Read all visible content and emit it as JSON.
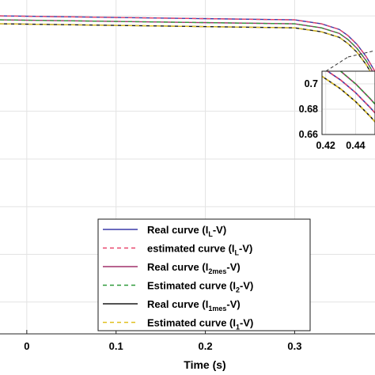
{
  "chart_data": {
    "type": "line",
    "xlabel": "Time (s)",
    "ylabel": "",
    "x_ticks": [
      "0",
      "0.1",
      "0.2",
      "0.3"
    ],
    "xlim": [
      -0.03,
      0.39
    ],
    "grid": true,
    "legend_position": "bottom-right",
    "series": [
      {
        "name": "Real curve (I",
        "sub": "L",
        "tail": "-V)",
        "color": "#3a3aa8",
        "dash": "solid",
        "x": [
          -0.03,
          0.3,
          0.33,
          0.35,
          0.36,
          0.37,
          0.38,
          0.39
        ],
        "y": [
          0.8,
          0.795,
          0.79,
          0.783,
          0.775,
          0.764,
          0.749,
          0.73
        ]
      },
      {
        "name": "estimated curve (I",
        "sub": "L",
        "tail": "-V)",
        "color": "#e8456a",
        "dash": "dashed",
        "x": [
          -0.03,
          0.3,
          0.33,
          0.35,
          0.36,
          0.37,
          0.38,
          0.39
        ],
        "y": [
          0.8,
          0.795,
          0.79,
          0.783,
          0.775,
          0.764,
          0.749,
          0.73
        ]
      },
      {
        "name": "Real curve (I",
        "sub": "2mes",
        "tail": "-V)",
        "color": "#a0306a",
        "dash": "solid",
        "x": [
          -0.03,
          0.3,
          0.33,
          0.35,
          0.36,
          0.37,
          0.38,
          0.39
        ],
        "y": [
          0.795,
          0.79,
          0.785,
          0.778,
          0.77,
          0.759,
          0.744,
          0.725
        ]
      },
      {
        "name": "Estimated curve (I",
        "sub": "2",
        "tail": "-V)",
        "color": "#2f9a3a",
        "dash": "dashed",
        "x": [
          -0.03,
          0.3,
          0.33,
          0.35,
          0.36,
          0.37,
          0.38,
          0.39
        ],
        "y": [
          0.795,
          0.79,
          0.785,
          0.778,
          0.77,
          0.759,
          0.744,
          0.725
        ]
      },
      {
        "name": "Real curve (I",
        "sub": "1mes",
        "tail": "-V)",
        "color": "#1a1a1a",
        "dash": "solid",
        "x": [
          -0.03,
          0.3,
          0.33,
          0.35,
          0.36,
          0.37,
          0.38,
          0.39
        ],
        "y": [
          0.79,
          0.785,
          0.78,
          0.773,
          0.765,
          0.754,
          0.739,
          0.72
        ]
      },
      {
        "name": "Estimated curve (I",
        "sub": "1",
        "tail": "-V)",
        "color": "#e0c020",
        "dash": "dashed",
        "x": [
          -0.03,
          0.3,
          0.33,
          0.35,
          0.36,
          0.37,
          0.38,
          0.39
        ],
        "y": [
          0.79,
          0.785,
          0.78,
          0.773,
          0.765,
          0.754,
          0.739,
          0.72
        ]
      }
    ],
    "inset": {
      "x_ticks": [
        "0.42",
        "0.44"
      ],
      "y_ticks": [
        "0.7",
        "0.68",
        "0.66"
      ],
      "xlim": [
        0.4175,
        0.453
      ],
      "ylim": [
        0.66,
        0.71
      ],
      "series_y": [
        {
          "x": [
            0.4175,
            0.42,
            0.43,
            0.44,
            0.45,
            0.453
          ],
          "y": [
            0.713,
            0.711,
            0.703,
            0.693,
            0.681,
            0.677
          ]
        },
        {
          "x": [
            0.4175,
            0.42,
            0.43,
            0.44,
            0.45,
            0.453
          ],
          "y": [
            0.713,
            0.711,
            0.703,
            0.693,
            0.681,
            0.677
          ]
        },
        {
          "x": [
            0.4175,
            0.42,
            0.43,
            0.44,
            0.45,
            0.453
          ],
          "y": [
            0.72,
            0.718,
            0.71,
            0.7,
            0.688,
            0.684
          ]
        },
        {
          "x": [
            0.4175,
            0.42,
            0.43,
            0.44,
            0.45,
            0.453
          ],
          "y": [
            0.72,
            0.718,
            0.71,
            0.7,
            0.688,
            0.684
          ]
        },
        {
          "x": [
            0.4175,
            0.42,
            0.43,
            0.44,
            0.45,
            0.453
          ],
          "y": [
            0.706,
            0.704,
            0.696,
            0.686,
            0.674,
            0.67
          ]
        },
        {
          "x": [
            0.4175,
            0.42,
            0.43,
            0.44,
            0.45,
            0.453
          ],
          "y": [
            0.706,
            0.704,
            0.696,
            0.686,
            0.674,
            0.67
          ]
        }
      ]
    }
  }
}
